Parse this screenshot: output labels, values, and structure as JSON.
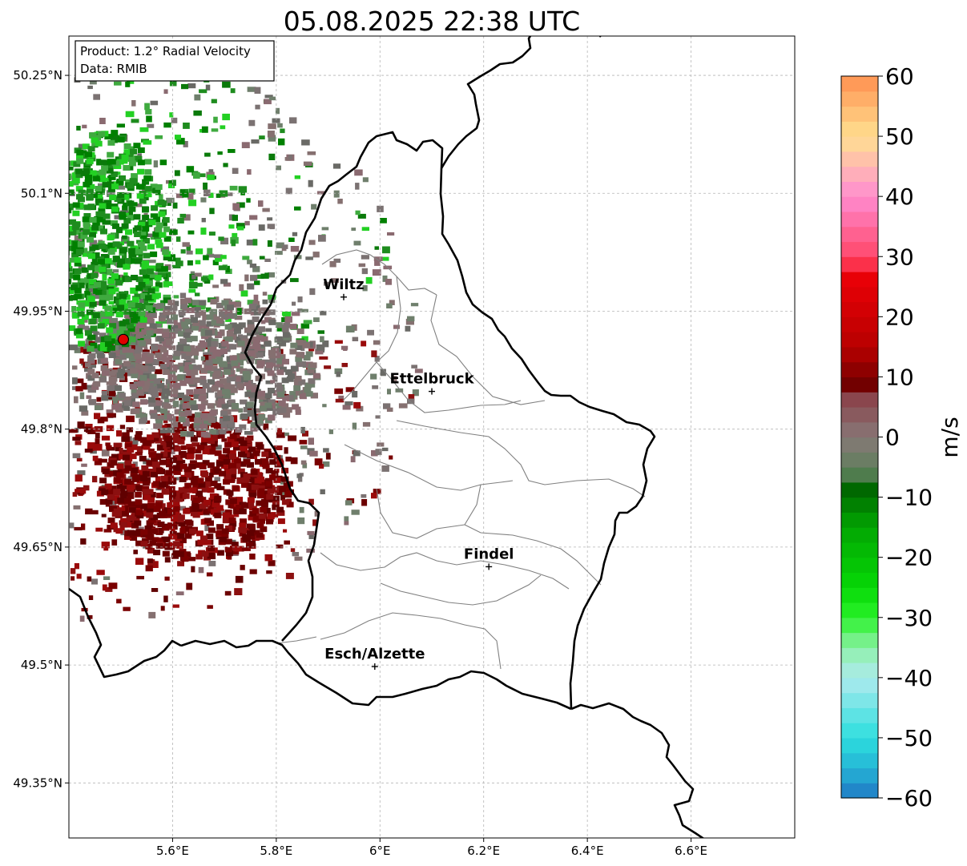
{
  "title": "05.08.2025 22:38 UTC",
  "info": {
    "product": "Product: 1.2° Radial Velocity",
    "data": "Data: RMIB"
  },
  "axes": {
    "lon_range": [
      5.4,
      6.8
    ],
    "lat_range": [
      49.28,
      50.3
    ],
    "lon_ticks": [
      {
        "value": 5.6,
        "label": "5.6°E"
      },
      {
        "value": 5.8,
        "label": "5.8°E"
      },
      {
        "value": 6.0,
        "label": "6°E"
      },
      {
        "value": 6.2,
        "label": "6.2°E"
      },
      {
        "value": 6.4,
        "label": "6.4°E"
      },
      {
        "value": 6.6,
        "label": "6.6°E"
      }
    ],
    "lat_ticks": [
      {
        "value": 50.25,
        "label": "50.25°N"
      },
      {
        "value": 50.1,
        "label": "50.1°N"
      },
      {
        "value": 49.95,
        "label": "49.95°N"
      },
      {
        "value": 49.8,
        "label": "49.8°N"
      },
      {
        "value": 49.65,
        "label": "49.65°N"
      },
      {
        "value": 49.5,
        "label": "49.5°N"
      },
      {
        "value": 49.35,
        "label": "49.35°N"
      }
    ]
  },
  "cities": [
    {
      "name": "Wiltz",
      "lon": 5.93,
      "lat": 49.968
    },
    {
      "name": "Ettelbruck",
      "lon": 6.1,
      "lat": 49.848
    },
    {
      "name": "Findel",
      "lon": 6.21,
      "lat": 49.625
    },
    {
      "name": "Esch/Alzette",
      "lon": 5.99,
      "lat": 49.498
    }
  ],
  "radar_site": {
    "lon": 5.505,
    "lat": 49.914,
    "color": "#e00000"
  },
  "colorbar": {
    "label": "m/s",
    "min": -60,
    "max": 60,
    "ticks": [
      {
        "value": 60,
        "label": "60"
      },
      {
        "value": 50,
        "label": "50"
      },
      {
        "value": 40,
        "label": "40"
      },
      {
        "value": 30,
        "label": "30"
      },
      {
        "value": 20,
        "label": "20"
      },
      {
        "value": 10,
        "label": "10"
      },
      {
        "value": 0,
        "label": "0"
      },
      {
        "value": -10,
        "label": "−10"
      },
      {
        "value": -20,
        "label": "−20"
      },
      {
        "value": -30,
        "label": "−30"
      },
      {
        "value": -40,
        "label": "−40"
      },
      {
        "value": -50,
        "label": "−50"
      },
      {
        "value": -60,
        "label": "−60"
      }
    ],
    "stops": [
      {
        "value": -60,
        "color": "#1f78c4"
      },
      {
        "value": -55,
        "color": "#25b5d6"
      },
      {
        "value": -50,
        "color": "#2ddede"
      },
      {
        "value": -40,
        "color": "#aeeaee"
      },
      {
        "value": -35,
        "color": "#8ef0a8"
      },
      {
        "value": -30,
        "color": "#2af22a"
      },
      {
        "value": -25,
        "color": "#06d806"
      },
      {
        "value": -15,
        "color": "#02a602"
      },
      {
        "value": -8,
        "color": "#006000"
      },
      {
        "value": -6,
        "color": "#5a8058"
      },
      {
        "value": 0,
        "color": "#887878"
      },
      {
        "value": 7,
        "color": "#8a4048"
      },
      {
        "value": 8,
        "color": "#6a0000"
      },
      {
        "value": 15,
        "color": "#b80000"
      },
      {
        "value": 28,
        "color": "#f00008"
      },
      {
        "value": 29,
        "color": "#ff4060"
      },
      {
        "value": 40,
        "color": "#ff8cd0"
      },
      {
        "value": 44,
        "color": "#ffb0b8"
      },
      {
        "value": 50,
        "color": "#ffe090"
      },
      {
        "value": 60,
        "color": "#ff9050"
      }
    ]
  },
  "colors": {
    "border": "#000000",
    "canton": "#808080",
    "grid": "#b5b5b5",
    "towards_radar": "#008000",
    "neutral": "#7a7070",
    "away_radar": "#6c0000"
  }
}
